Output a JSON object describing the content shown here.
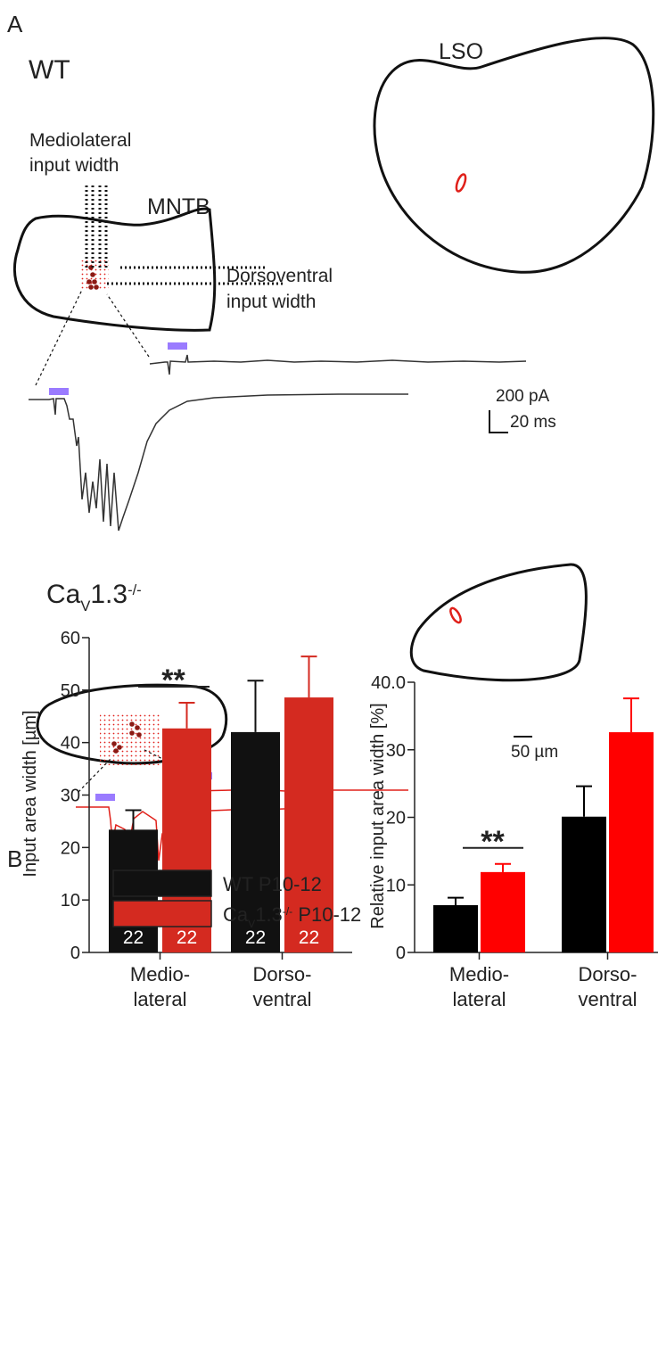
{
  "panel_a": {
    "label": "A",
    "wt": {
      "label": "WT",
      "lso": "LSO",
      "mediolateral": [
        "Mediolateral",
        "input width"
      ],
      "mntb": "MNTB",
      "dorsoventral": [
        "Dorsoventral",
        "input width"
      ],
      "scale_current": "200 pA",
      "scale_time": "20 ms"
    },
    "ko": {
      "label": {
        "base": "Ca",
        "sub": "V",
        "mid": "1.3",
        "sup": "-/-"
      },
      "scale_length": "50 µm"
    }
  },
  "panel_b": {
    "label": "B"
  },
  "chart_data": [
    {
      "type": "bar",
      "ylabel": "Input area width [µm]",
      "categories": [
        [
          "Medio-",
          "lateral"
        ],
        [
          "Dorso-",
          "ventral"
        ]
      ],
      "series": [
        {
          "name": {
            "base": "WT P10-12"
          },
          "color": "#111111",
          "values": [
            23.4,
            42.0
          ],
          "errors": [
            3.7,
            9.8
          ],
          "n": [
            22,
            22
          ]
        },
        {
          "name": {
            "base": "Ca",
            "sub": "V",
            "mid": "1.3",
            "sup": "-/-",
            "rest": " P10-12"
          },
          "color": "#d42a20",
          "values": [
            42.7,
            48.6
          ],
          "errors": [
            4.9,
            7.8
          ],
          "n": [
            22,
            22
          ]
        }
      ],
      "annotations": [
        {
          "text": "**",
          "category": 0
        }
      ],
      "ylim": [
        0,
        60
      ],
      "yticks": [
        0,
        10,
        20,
        30,
        40,
        50,
        60
      ]
    },
    {
      "type": "bar",
      "ylabel": "Relative input area width [%]",
      "categories": [
        [
          "Medio-",
          "lateral"
        ],
        [
          "Dorso-",
          "ventral"
        ]
      ],
      "series": [
        {
          "color": "#000000",
          "values": [
            7.0,
            20.1
          ],
          "errors": [
            1.1,
            4.5
          ]
        },
        {
          "color": "#ff0000",
          "values": [
            11.9,
            32.6
          ],
          "errors": [
            1.2,
            5.0
          ]
        }
      ],
      "annotations": [
        {
          "text": "**",
          "category": 0
        }
      ],
      "ylim": [
        0,
        40
      ],
      "yticks": [
        0,
        10,
        20,
        30,
        {
          "value": 40,
          "label": "40.0"
        }
      ]
    }
  ]
}
